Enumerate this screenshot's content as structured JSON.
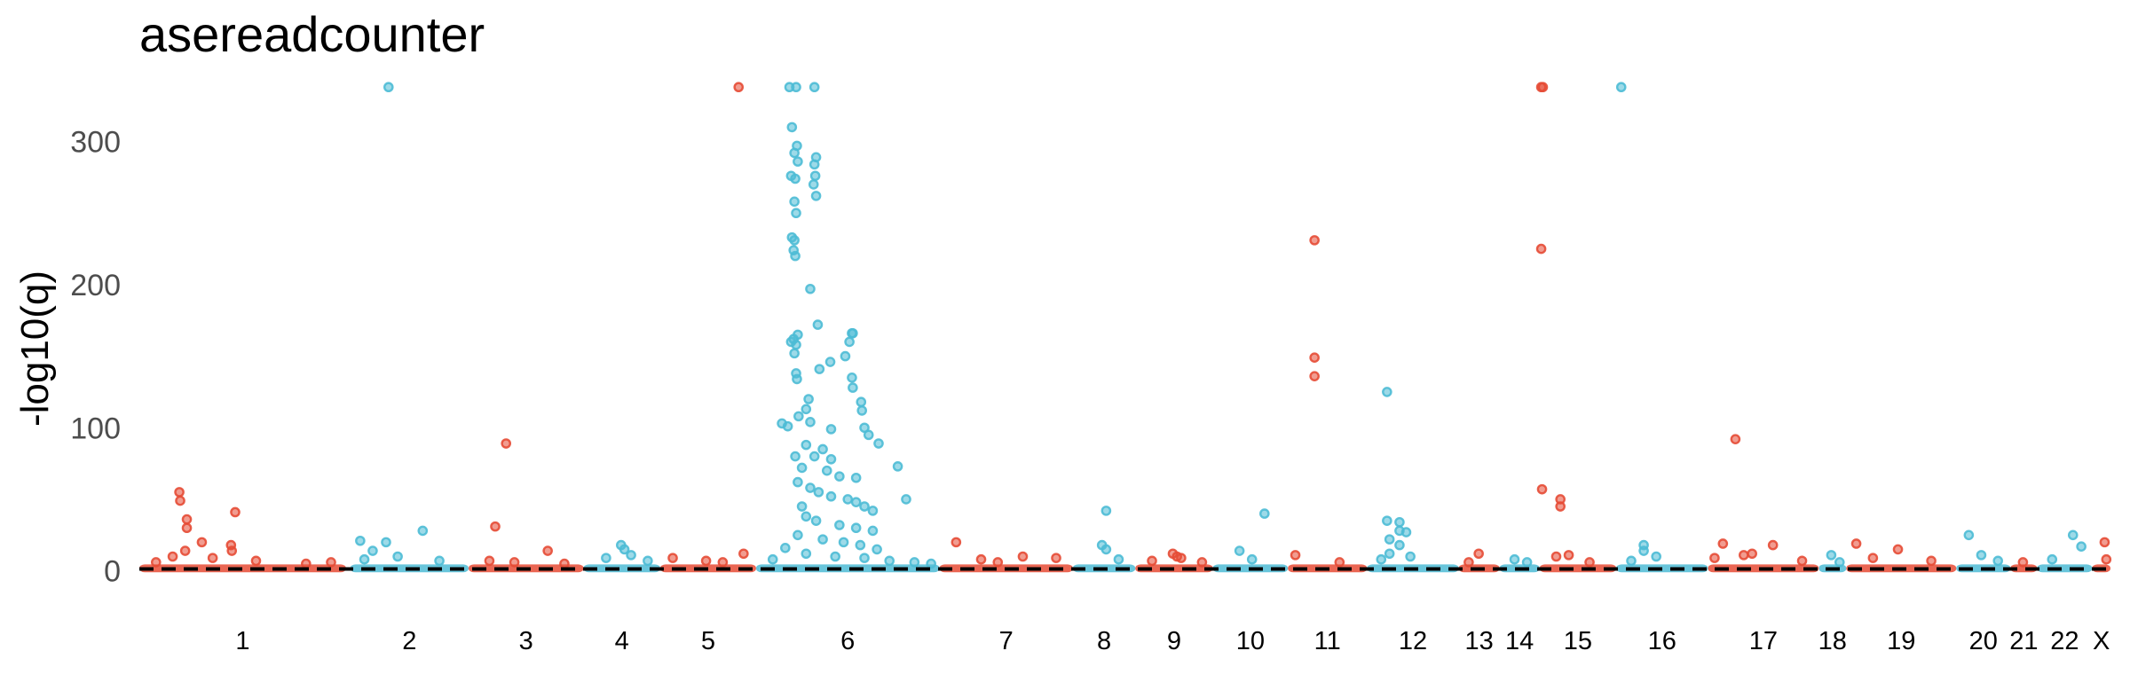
{
  "chart_data": {
    "type": "scatter",
    "title": "asereadcounter",
    "xlabel": "",
    "ylabel": "-log10(q)",
    "ylim": [
      -12,
      340
    ],
    "yticks": [
      0,
      100,
      200,
      300
    ],
    "threshold": 1.3,
    "grid": false,
    "legend": "none",
    "colors": [
      "#e64b35",
      "#4dbbd5"
    ],
    "threshold_color": "#000000",
    "chromosomes": [
      {
        "label": "1",
        "start": 0,
        "end": 248
      },
      {
        "label": "2",
        "start": 253,
        "end": 395
      },
      {
        "label": "3",
        "start": 395,
        "end": 533
      },
      {
        "label": "4",
        "start": 533,
        "end": 625
      },
      {
        "label": "5",
        "start": 625,
        "end": 740
      },
      {
        "label": "6",
        "start": 740,
        "end": 960
      },
      {
        "label": "7",
        "start": 960,
        "end": 1120
      },
      {
        "label": "8",
        "start": 1120,
        "end": 1195
      },
      {
        "label": "9",
        "start": 1195,
        "end": 1288
      },
      {
        "label": "10",
        "start": 1288,
        "end": 1378
      },
      {
        "label": "11",
        "start": 1378,
        "end": 1473
      },
      {
        "label": "12",
        "start": 1473,
        "end": 1583
      },
      {
        "label": "13",
        "start": 1583,
        "end": 1632
      },
      {
        "label": "14",
        "start": 1632,
        "end": 1680
      },
      {
        "label": "15",
        "start": 1680,
        "end": 1772
      },
      {
        "label": "16",
        "start": 1772,
        "end": 1882
      },
      {
        "label": "17",
        "start": 1882,
        "end": 2015
      },
      {
        "label": "18",
        "start": 2015,
        "end": 2048
      },
      {
        "label": "19",
        "start": 2048,
        "end": 2180
      },
      {
        "label": "20",
        "start": 2180,
        "end": 2245
      },
      {
        "label": "21",
        "start": 2245,
        "end": 2277
      },
      {
        "label": "22",
        "start": 2277,
        "end": 2343
      },
      {
        "label": "X",
        "start": 2343,
        "end": 2365
      }
    ],
    "xlim": [
      0,
      2365
    ],
    "points": [
      {
        "chr": "1",
        "x": 48,
        "y": 55
      },
      {
        "chr": "1",
        "x": 49,
        "y": 49
      },
      {
        "chr": "1",
        "x": 57,
        "y": 36
      },
      {
        "chr": "1",
        "x": 57,
        "y": 30
      },
      {
        "chr": "1",
        "x": 115,
        "y": 41
      },
      {
        "chr": "1",
        "x": 75,
        "y": 20
      },
      {
        "chr": "1",
        "x": 110,
        "y": 18
      },
      {
        "chr": "1",
        "x": 111,
        "y": 14
      },
      {
        "chr": "1",
        "x": 55,
        "y": 14
      },
      {
        "chr": "1",
        "x": 40,
        "y": 10
      },
      {
        "chr": "1",
        "x": 88,
        "y": 9
      },
      {
        "chr": "1",
        "x": 140,
        "y": 7
      },
      {
        "chr": "1",
        "x": 20,
        "y": 6
      },
      {
        "chr": "1",
        "x": 200,
        "y": 5
      },
      {
        "chr": "1",
        "x": 230,
        "y": 6
      },
      {
        "chr": "2",
        "x": 299,
        "y": 338
      },
      {
        "chr": "2",
        "x": 265,
        "y": 21
      },
      {
        "chr": "2",
        "x": 296,
        "y": 20
      },
      {
        "chr": "2",
        "x": 340,
        "y": 28
      },
      {
        "chr": "2",
        "x": 280,
        "y": 14
      },
      {
        "chr": "2",
        "x": 310,
        "y": 10
      },
      {
        "chr": "2",
        "x": 360,
        "y": 7
      },
      {
        "chr": "2",
        "x": 270,
        "y": 8
      },
      {
        "chr": "3",
        "x": 440,
        "y": 89
      },
      {
        "chr": "3",
        "x": 427,
        "y": 31
      },
      {
        "chr": "3",
        "x": 490,
        "y": 14
      },
      {
        "chr": "3",
        "x": 420,
        "y": 7
      },
      {
        "chr": "3",
        "x": 450,
        "y": 6
      },
      {
        "chr": "3",
        "x": 510,
        "y": 5
      },
      {
        "chr": "4",
        "x": 578,
        "y": 18
      },
      {
        "chr": "4",
        "x": 582,
        "y": 15
      },
      {
        "chr": "4",
        "x": 590,
        "y": 11
      },
      {
        "chr": "4",
        "x": 560,
        "y": 9
      },
      {
        "chr": "4",
        "x": 610,
        "y": 7
      },
      {
        "chr": "5",
        "x": 719,
        "y": 338
      },
      {
        "chr": "5",
        "x": 725,
        "y": 12
      },
      {
        "chr": "5",
        "x": 640,
        "y": 9
      },
      {
        "chr": "5",
        "x": 680,
        "y": 7
      },
      {
        "chr": "5",
        "x": 700,
        "y": 6
      },
      {
        "chr": "6",
        "x": 780,
        "y": 338
      },
      {
        "chr": "6",
        "x": 788,
        "y": 338
      },
      {
        "chr": "6",
        "x": 810,
        "y": 338
      },
      {
        "chr": "6",
        "x": 783,
        "y": 310
      },
      {
        "chr": "6",
        "x": 789,
        "y": 297
      },
      {
        "chr": "6",
        "x": 786,
        "y": 292
      },
      {
        "chr": "6",
        "x": 790,
        "y": 286
      },
      {
        "chr": "6",
        "x": 782,
        "y": 276
      },
      {
        "chr": "6",
        "x": 787,
        "y": 274
      },
      {
        "chr": "6",
        "x": 812,
        "y": 289
      },
      {
        "chr": "6",
        "x": 810,
        "y": 284
      },
      {
        "chr": "6",
        "x": 811,
        "y": 276
      },
      {
        "chr": "6",
        "x": 809,
        "y": 270
      },
      {
        "chr": "6",
        "x": 812,
        "y": 262
      },
      {
        "chr": "6",
        "x": 786,
        "y": 258
      },
      {
        "chr": "6",
        "x": 788,
        "y": 250
      },
      {
        "chr": "6",
        "x": 783,
        "y": 233
      },
      {
        "chr": "6",
        "x": 786,
        "y": 231
      },
      {
        "chr": "6",
        "x": 785,
        "y": 224
      },
      {
        "chr": "6",
        "x": 787,
        "y": 220
      },
      {
        "chr": "6",
        "x": 805,
        "y": 197
      },
      {
        "chr": "6",
        "x": 814,
        "y": 172
      },
      {
        "chr": "6",
        "x": 855,
        "y": 166
      },
      {
        "chr": "6",
        "x": 856,
        "y": 166
      },
      {
        "chr": "6",
        "x": 790,
        "y": 165
      },
      {
        "chr": "6",
        "x": 785,
        "y": 162
      },
      {
        "chr": "6",
        "x": 782,
        "y": 160
      },
      {
        "chr": "6",
        "x": 788,
        "y": 158
      },
      {
        "chr": "6",
        "x": 786,
        "y": 152
      },
      {
        "chr": "6",
        "x": 852,
        "y": 160
      },
      {
        "chr": "6",
        "x": 829,
        "y": 146
      },
      {
        "chr": "6",
        "x": 847,
        "y": 150
      },
      {
        "chr": "6",
        "x": 816,
        "y": 141
      },
      {
        "chr": "6",
        "x": 788,
        "y": 138
      },
      {
        "chr": "6",
        "x": 789,
        "y": 134
      },
      {
        "chr": "6",
        "x": 855,
        "y": 135
      },
      {
        "chr": "6",
        "x": 856,
        "y": 128
      },
      {
        "chr": "6",
        "x": 803,
        "y": 120
      },
      {
        "chr": "6",
        "x": 866,
        "y": 118
      },
      {
        "chr": "6",
        "x": 800,
        "y": 113
      },
      {
        "chr": "6",
        "x": 867,
        "y": 112
      },
      {
        "chr": "6",
        "x": 791,
        "y": 108
      },
      {
        "chr": "6",
        "x": 805,
        "y": 104
      },
      {
        "chr": "6",
        "x": 771,
        "y": 103
      },
      {
        "chr": "6",
        "x": 778,
        "y": 101
      },
      {
        "chr": "6",
        "x": 830,
        "y": 99
      },
      {
        "chr": "6",
        "x": 870,
        "y": 100
      },
      {
        "chr": "6",
        "x": 875,
        "y": 95
      },
      {
        "chr": "6",
        "x": 887,
        "y": 89
      },
      {
        "chr": "6",
        "x": 800,
        "y": 88
      },
      {
        "chr": "6",
        "x": 810,
        "y": 80
      },
      {
        "chr": "6",
        "x": 820,
        "y": 85
      },
      {
        "chr": "6",
        "x": 830,
        "y": 78
      },
      {
        "chr": "6",
        "x": 787,
        "y": 80
      },
      {
        "chr": "6",
        "x": 825,
        "y": 70
      },
      {
        "chr": "6",
        "x": 795,
        "y": 72
      },
      {
        "chr": "6",
        "x": 910,
        "y": 73
      },
      {
        "chr": "6",
        "x": 860,
        "y": 65
      },
      {
        "chr": "6",
        "x": 840,
        "y": 66
      },
      {
        "chr": "6",
        "x": 790,
        "y": 62
      },
      {
        "chr": "6",
        "x": 805,
        "y": 58
      },
      {
        "chr": "6",
        "x": 815,
        "y": 55
      },
      {
        "chr": "6",
        "x": 830,
        "y": 52
      },
      {
        "chr": "6",
        "x": 850,
        "y": 50
      },
      {
        "chr": "6",
        "x": 860,
        "y": 48
      },
      {
        "chr": "6",
        "x": 870,
        "y": 45
      },
      {
        "chr": "6",
        "x": 880,
        "y": 42
      },
      {
        "chr": "6",
        "x": 795,
        "y": 45
      },
      {
        "chr": "6",
        "x": 920,
        "y": 50
      },
      {
        "chr": "6",
        "x": 800,
        "y": 38
      },
      {
        "chr": "6",
        "x": 812,
        "y": 35
      },
      {
        "chr": "6",
        "x": 840,
        "y": 32
      },
      {
        "chr": "6",
        "x": 860,
        "y": 30
      },
      {
        "chr": "6",
        "x": 880,
        "y": 28
      },
      {
        "chr": "6",
        "x": 790,
        "y": 25
      },
      {
        "chr": "6",
        "x": 820,
        "y": 22
      },
      {
        "chr": "6",
        "x": 845,
        "y": 20
      },
      {
        "chr": "6",
        "x": 865,
        "y": 18
      },
      {
        "chr": "6",
        "x": 885,
        "y": 15
      },
      {
        "chr": "6",
        "x": 775,
        "y": 16
      },
      {
        "chr": "6",
        "x": 800,
        "y": 12
      },
      {
        "chr": "6",
        "x": 835,
        "y": 10
      },
      {
        "chr": "6",
        "x": 870,
        "y": 9
      },
      {
        "chr": "6",
        "x": 760,
        "y": 8
      },
      {
        "chr": "6",
        "x": 900,
        "y": 7
      },
      {
        "chr": "6",
        "x": 930,
        "y": 6
      },
      {
        "chr": "6",
        "x": 950,
        "y": 5
      },
      {
        "chr": "7",
        "x": 980,
        "y": 20
      },
      {
        "chr": "7",
        "x": 1010,
        "y": 8
      },
      {
        "chr": "7",
        "x": 1060,
        "y": 10
      },
      {
        "chr": "7",
        "x": 1100,
        "y": 9
      },
      {
        "chr": "7",
        "x": 1030,
        "y": 6
      },
      {
        "chr": "8",
        "x": 1160,
        "y": 42
      },
      {
        "chr": "8",
        "x": 1155,
        "y": 18
      },
      {
        "chr": "8",
        "x": 1160,
        "y": 15
      },
      {
        "chr": "8",
        "x": 1175,
        "y": 8
      },
      {
        "chr": "9",
        "x": 1240,
        "y": 12
      },
      {
        "chr": "9",
        "x": 1245,
        "y": 10
      },
      {
        "chr": "9",
        "x": 1250,
        "y": 9
      },
      {
        "chr": "9",
        "x": 1215,
        "y": 7
      },
      {
        "chr": "9",
        "x": 1275,
        "y": 6
      },
      {
        "chr": "10",
        "x": 1350,
        "y": 40
      },
      {
        "chr": "10",
        "x": 1320,
        "y": 14
      },
      {
        "chr": "10",
        "x": 1335,
        "y": 8
      },
      {
        "chr": "11",
        "x": 1410,
        "y": 231
      },
      {
        "chr": "11",
        "x": 1410,
        "y": 149
      },
      {
        "chr": "11",
        "x": 1410,
        "y": 136
      },
      {
        "chr": "11",
        "x": 1387,
        "y": 11
      },
      {
        "chr": "11",
        "x": 1440,
        "y": 6
      },
      {
        "chr": "12",
        "x": 1497,
        "y": 125
      },
      {
        "chr": "12",
        "x": 1497,
        "y": 35
      },
      {
        "chr": "12",
        "x": 1512,
        "y": 34
      },
      {
        "chr": "12",
        "x": 1512,
        "y": 28
      },
      {
        "chr": "12",
        "x": 1520,
        "y": 27
      },
      {
        "chr": "12",
        "x": 1500,
        "y": 22
      },
      {
        "chr": "12",
        "x": 1512,
        "y": 18
      },
      {
        "chr": "12",
        "x": 1500,
        "y": 12
      },
      {
        "chr": "12",
        "x": 1525,
        "y": 10
      },
      {
        "chr": "12",
        "x": 1490,
        "y": 8
      },
      {
        "chr": "13",
        "x": 1607,
        "y": 12
      },
      {
        "chr": "13",
        "x": 1595,
        "y": 6
      },
      {
        "chr": "14",
        "x": 1650,
        "y": 8
      },
      {
        "chr": "14",
        "x": 1665,
        "y": 6
      },
      {
        "chr": "15",
        "x": 1682,
        "y": 338
      },
      {
        "chr": "15",
        "x": 1684,
        "y": 338
      },
      {
        "chr": "15",
        "x": 1682,
        "y": 225
      },
      {
        "chr": "15",
        "x": 1683,
        "y": 57
      },
      {
        "chr": "15",
        "x": 1705,
        "y": 50
      },
      {
        "chr": "15",
        "x": 1705,
        "y": 45
      },
      {
        "chr": "15",
        "x": 1700,
        "y": 10
      },
      {
        "chr": "15",
        "x": 1715,
        "y": 11
      },
      {
        "chr": "15",
        "x": 1740,
        "y": 6
      },
      {
        "chr": "16",
        "x": 1778,
        "y": 338
      },
      {
        "chr": "16",
        "x": 1805,
        "y": 18
      },
      {
        "chr": "16",
        "x": 1805,
        "y": 14
      },
      {
        "chr": "16",
        "x": 1820,
        "y": 10
      },
      {
        "chr": "16",
        "x": 1790,
        "y": 7
      },
      {
        "chr": "17",
        "x": 1915,
        "y": 92
      },
      {
        "chr": "17",
        "x": 1900,
        "y": 19
      },
      {
        "chr": "17",
        "x": 1925,
        "y": 11
      },
      {
        "chr": "17",
        "x": 1935,
        "y": 12
      },
      {
        "chr": "17",
        "x": 1960,
        "y": 18
      },
      {
        "chr": "17",
        "x": 1890,
        "y": 9
      },
      {
        "chr": "17",
        "x": 1995,
        "y": 7
      },
      {
        "chr": "18",
        "x": 2030,
        "y": 11
      },
      {
        "chr": "18",
        "x": 2040,
        "y": 6
      },
      {
        "chr": "19",
        "x": 2060,
        "y": 19
      },
      {
        "chr": "19",
        "x": 2110,
        "y": 15
      },
      {
        "chr": "19",
        "x": 2080,
        "y": 9
      },
      {
        "chr": "19",
        "x": 2150,
        "y": 7
      },
      {
        "chr": "20",
        "x": 2195,
        "y": 25
      },
      {
        "chr": "20",
        "x": 2210,
        "y": 11
      },
      {
        "chr": "20",
        "x": 2230,
        "y": 7
      },
      {
        "chr": "21",
        "x": 2260,
        "y": 6
      },
      {
        "chr": "22",
        "x": 2320,
        "y": 25
      },
      {
        "chr": "22",
        "x": 2330,
        "y": 17
      },
      {
        "chr": "22",
        "x": 2295,
        "y": 8
      },
      {
        "chr": "X",
        "x": 2358,
        "y": 20
      },
      {
        "chr": "X",
        "x": 2360,
        "y": 8
      }
    ]
  }
}
